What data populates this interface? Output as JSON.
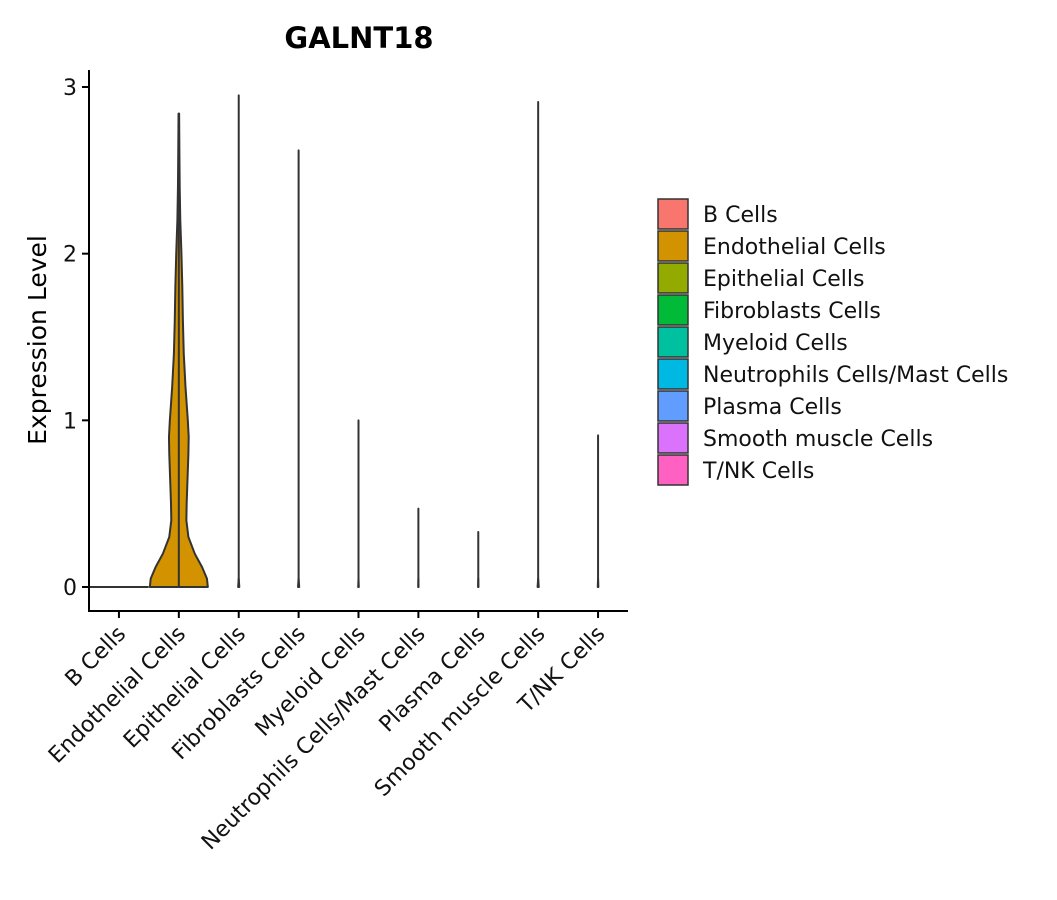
{
  "chart_data": {
    "type": "violin",
    "title": "GALNT18",
    "xlabel": "",
    "ylabel": "Expression Level",
    "ylim": [
      -0.15,
      3.1
    ],
    "yticks": [
      0,
      1,
      2,
      3
    ],
    "categories": [
      "B Cells",
      "Endothelial Cells",
      "Epithelial Cells",
      "Fibroblasts Cells",
      "Myeloid Cells",
      "Neutrophils Cells/Mast Cells",
      "Plasma Cells",
      "Smooth muscle Cells",
      "T/NK Cells"
    ],
    "colors": [
      "#F8766D",
      "#D39200",
      "#93AA00",
      "#00BA38",
      "#00C19F",
      "#00B9E3",
      "#619CFF",
      "#DB72FB",
      "#FF61C3"
    ],
    "series": [
      {
        "name": "B Cells",
        "max": 0.0,
        "density": [
          [
            0,
            1.0
          ]
        ]
      },
      {
        "name": "Endothelial Cells",
        "max": 2.84,
        "density": [
          [
            0,
            1.0
          ],
          [
            0.05,
            0.97
          ],
          [
            0.12,
            0.8
          ],
          [
            0.2,
            0.55
          ],
          [
            0.3,
            0.33
          ],
          [
            0.4,
            0.26
          ],
          [
            0.5,
            0.27
          ],
          [
            0.65,
            0.3
          ],
          [
            0.8,
            0.33
          ],
          [
            0.9,
            0.34
          ],
          [
            1.0,
            0.31
          ],
          [
            1.2,
            0.23
          ],
          [
            1.4,
            0.17
          ],
          [
            1.6,
            0.14
          ],
          [
            1.8,
            0.12
          ],
          [
            2.0,
            0.09
          ],
          [
            2.2,
            0.05
          ],
          [
            2.4,
            0.03
          ],
          [
            2.6,
            0.02
          ],
          [
            2.84,
            0.01
          ]
        ]
      },
      {
        "name": "Epithelial Cells",
        "max": 2.95,
        "density": [
          [
            0,
            0.02
          ],
          [
            0.05,
            0.0
          ]
        ]
      },
      {
        "name": "Fibroblasts Cells",
        "max": 2.62,
        "density": [
          [
            0,
            0.02
          ],
          [
            0.05,
            0.0
          ]
        ]
      },
      {
        "name": "Myeloid Cells",
        "max": 1.0,
        "density": [
          [
            0,
            0.01
          ],
          [
            0.05,
            0.0
          ]
        ]
      },
      {
        "name": "Neutrophils Cells/Mast Cells",
        "max": 0.47,
        "density": [
          [
            0,
            0.005
          ],
          [
            0.05,
            0.0
          ]
        ]
      },
      {
        "name": "Plasma Cells",
        "max": 0.33,
        "density": [
          [
            0,
            0.005
          ],
          [
            0.05,
            0.0
          ]
        ]
      },
      {
        "name": "Smooth muscle Cells",
        "max": 2.91,
        "density": [
          [
            0,
            0.02
          ],
          [
            0.05,
            0.0
          ]
        ]
      },
      {
        "name": "T/NK Cells",
        "max": 0.91,
        "density": [
          [
            0,
            0.01
          ],
          [
            0.05,
            0.0
          ]
        ]
      }
    ],
    "legend": {
      "position": "right",
      "entries": [
        "B Cells",
        "Endothelial Cells",
        "Epithelial Cells",
        "Fibroblasts Cells",
        "Myeloid Cells",
        "Neutrophils Cells/Mast Cells",
        "Plasma Cells",
        "Smooth muscle Cells",
        "T/NK Cells"
      ]
    }
  }
}
